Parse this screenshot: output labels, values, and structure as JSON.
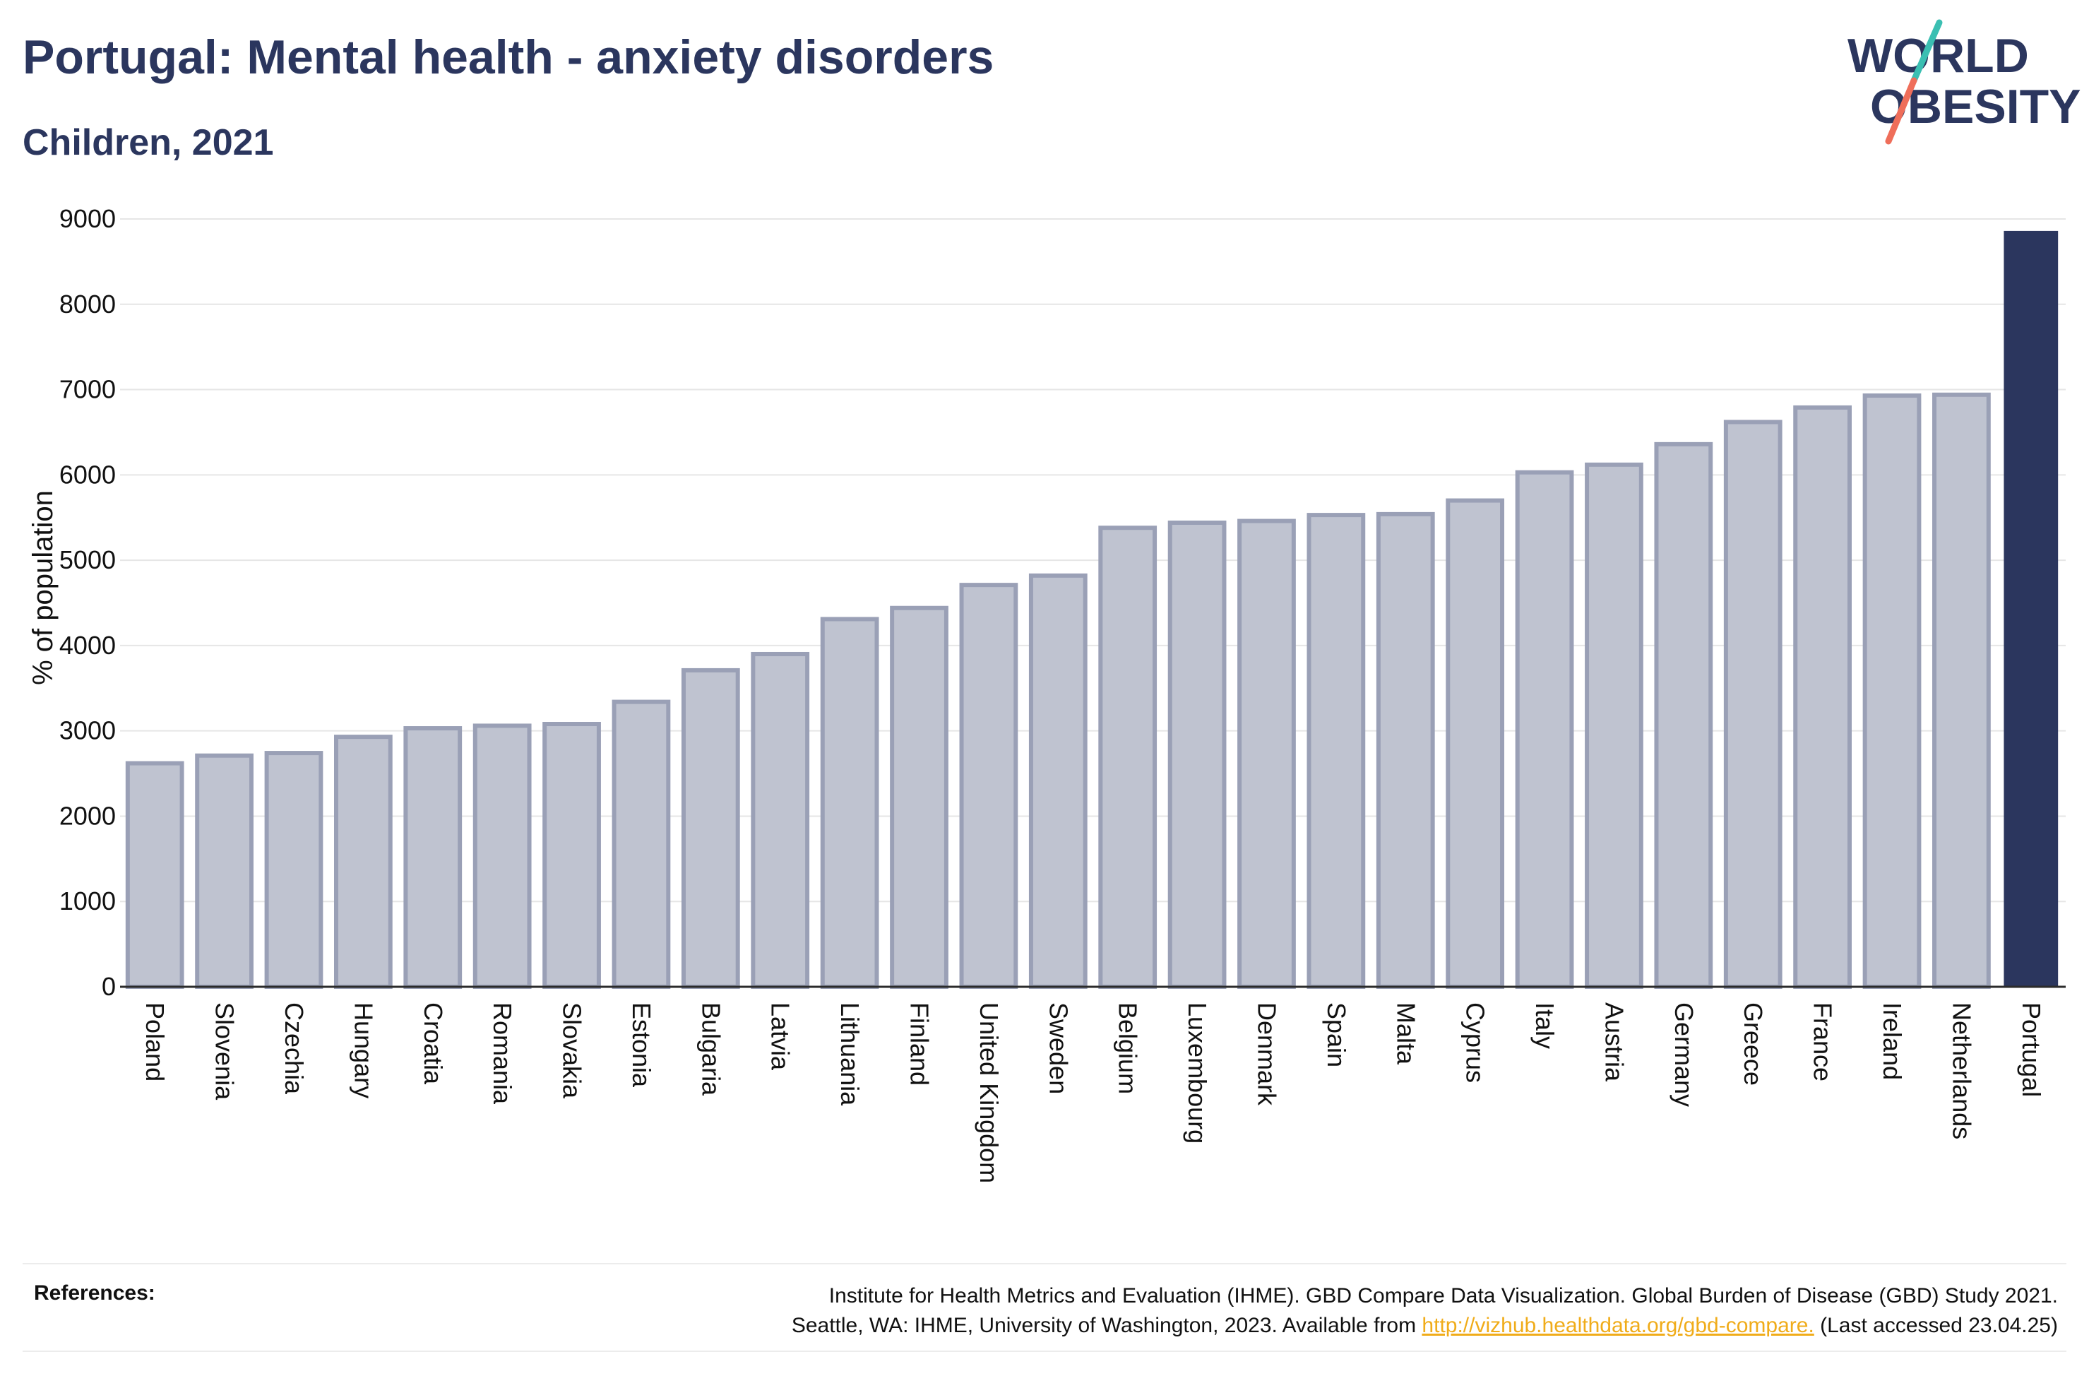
{
  "header": {
    "title": "Portugal: Mental health - anxiety disorders",
    "subtitle": "Children, 2021"
  },
  "logo": {
    "line1": "WORLD",
    "line2": "OBESITY",
    "slash_colors": [
      "#3bbfb2",
      "#ef6e5a"
    ],
    "text_color": "#2b365e"
  },
  "colors": {
    "highlight_bar": "#2b365e",
    "bar_fill": "#bfc3d0",
    "bar_stroke": "#9aa0b6",
    "grid": "#e6e6e6"
  },
  "chart_data": {
    "type": "bar",
    "title": "Portugal: Mental health - anxiety disorders",
    "subtitle": "Children, 2021",
    "ylabel": "% of population",
    "xlabel": "",
    "ylim": [
      0,
      9000
    ],
    "yticks": [
      0,
      1000,
      2000,
      3000,
      4000,
      5000,
      6000,
      7000,
      8000,
      9000
    ],
    "grid": true,
    "highlight": "Portugal",
    "categories": [
      "Poland",
      "Slovenia",
      "Czechia",
      "Hungary",
      "Croatia",
      "Romania",
      "Slovakia",
      "Estonia",
      "Bulgaria",
      "Latvia",
      "Lithuania",
      "Finland",
      "United Kingdom",
      "Sweden",
      "Belgium",
      "Luxembourg",
      "Denmark",
      "Spain",
      "Malta",
      "Cyprus",
      "Italy",
      "Austria",
      "Germany",
      "Greece",
      "France",
      "Ireland",
      "Netherlands",
      "Portugal"
    ],
    "values": [
      2620,
      2710,
      2740,
      2930,
      3030,
      3060,
      3080,
      3340,
      3710,
      3900,
      4310,
      4440,
      4710,
      4820,
      5380,
      5440,
      5460,
      5530,
      5540,
      5700,
      6030,
      6120,
      6360,
      6620,
      6790,
      6930,
      6940,
      8860
    ]
  },
  "references": {
    "label": "References:",
    "line1": "Institute for Health Metrics and Evaluation (IHME). GBD Compare Data Visualization. Global Burden of Disease (GBD) Study 2021.",
    "line2_prefix": "Seattle, WA: IHME, University of Washington, 2023. Available from ",
    "link": "http://vizhub.healthdata.org/gbd-compare.",
    "line2_suffix": " (Last accessed 23.04.25)"
  }
}
